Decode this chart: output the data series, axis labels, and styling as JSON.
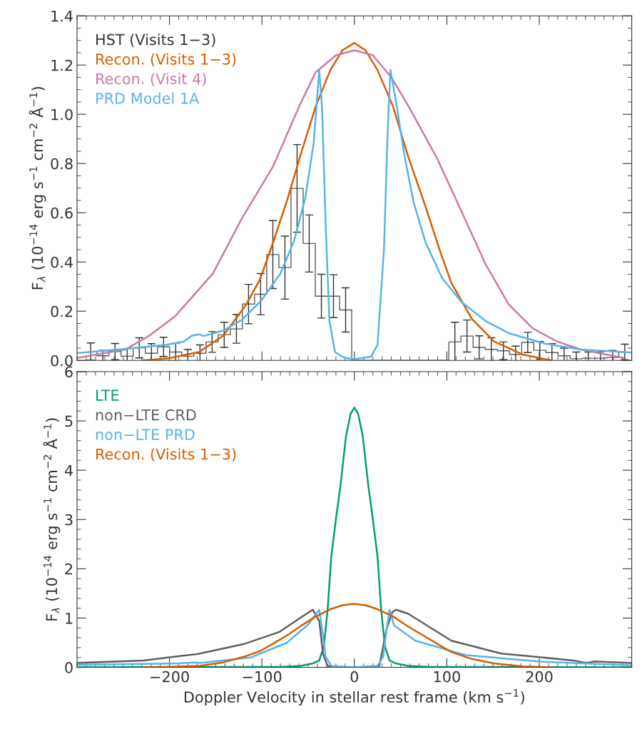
{
  "chart_data": [
    {
      "type": "line",
      "ylabel": "F$_{λ}$ (10$^{−14}$ erg s$^{−1}$ cm$^{−2}$ Å$^{−1}$)",
      "xlim": [
        -300,
        300
      ],
      "xticks": [
        -200,
        -100,
        0,
        100,
        200
      ],
      "ylim": [
        0,
        1.4
      ],
      "yticks": [
        {
          "value": 0,
          "label": "0.0"
        },
        0.2,
        0.4,
        0.6,
        0.8,
        {
          "value": 1,
          "label": "1.0"
        },
        1.2,
        1.4
      ],
      "tick_labels": "y",
      "legend": "top left",
      "grid": false,
      "series": [
        {
          "name": "HST (Visits 1−3)",
          "type": "step",
          "color": "#333333",
          "x": [
            -285.2,
            -272.1,
            -258.9,
            -245.8,
            -232.7,
            -219.5,
            -206.4,
            -193.3,
            -180.2,
            -167.0,
            -153.9,
            -140.8,
            -127.6,
            -114.5,
            -101.4,
            -88.2,
            -75.1,
            -62.0,
            -48.9,
            -35.7,
            -22.6,
            -9.5,
            3.7,
            16.8,
            29.9,
            43.1,
            56.2,
            69.3,
            82.4,
            95.6,
            108.7,
            121.8,
            135.0,
            148.1,
            161.2,
            174.4,
            187.5,
            200.6,
            213.7,
            226.9,
            240.0,
            253.1,
            266.3,
            279.4,
            292.5
          ],
          "values": [
            0.036,
            0.019,
            0.036,
            0.017,
            0.051,
            0.029,
            0.055,
            0.034,
            0.017,
            0.029,
            0.075,
            0.104,
            0.128,
            0.229,
            0.269,
            0.43,
            0.377,
            0.699,
            0.475,
            0.261,
            0.261,
            0.205,
            0,
            0,
            0,
            0,
            0,
            0,
            0,
            0,
            0.075,
            0.099,
            0.053,
            0.045,
            0.039,
            0.024,
            0.073,
            0.041,
            0.032,
            0.019,
            0.007,
            0.009,
            0.009,
            0.012,
            0.034
          ],
          "errors": [
            0.035,
            0.022,
            0.033,
            0.031,
            0.041,
            0.039,
            0.039,
            0.036,
            0.027,
            0.034,
            0.042,
            0.051,
            0.058,
            0.08,
            0.084,
            0.138,
            0.128,
            0.178,
            0.116,
            0.089,
            0.087,
            0.09,
            null,
            null,
            null,
            null,
            null,
            null,
            null,
            null,
            0.08,
            0.065,
            0.047,
            0.047,
            0.036,
            0.034,
            0.041,
            0.036,
            0.036,
            0.031,
            0.027,
            0.025,
            0.026,
            0.029,
            0.032
          ]
        },
        {
          "name": "Recon. (Visits 1−3)",
          "color": "#d55e00",
          "x": [
            -229,
            -202,
            -168,
            -142,
            -117,
            -102,
            -88,
            -72,
            -57,
            -42,
            -26,
            -13,
            0,
            12,
            25,
            42,
            58,
            77,
            93,
            105,
            127,
            151,
            182,
            213
          ],
          "values": [
            0,
            0.008,
            0.034,
            0.1,
            0.227,
            0.33,
            0.479,
            0.66,
            0.85,
            1.03,
            1.18,
            1.26,
            1.29,
            1.26,
            1.18,
            1.03,
            0.83,
            0.624,
            0.44,
            0.314,
            0.169,
            0.077,
            0.024,
            0
          ]
        },
        {
          "name": "Recon. (Visit 4)",
          "color": "#cc79a7",
          "x": [
            -300,
            -248,
            -222,
            -194,
            -153,
            -122,
            -88,
            -60,
            -42,
            -20,
            0,
            20,
            40,
            59,
            90,
            116,
            142,
            167,
            193,
            219,
            245,
            291
          ],
          "values": [
            0.01,
            0.044,
            0.1,
            0.179,
            0.353,
            0.575,
            0.788,
            1.03,
            1.17,
            1.24,
            1.26,
            1.24,
            1.15,
            1.03,
            0.817,
            0.604,
            0.39,
            0.227,
            0.13,
            0.077,
            0.044,
            0.01
          ]
        },
        {
          "name": "PRD Model 1A",
          "color": "#56b4e9",
          "x": [
            -300,
            -256,
            -204,
            -184,
            -176,
            -168,
            -163,
            -142,
            -122,
            -101,
            -80,
            -65,
            -53,
            -44,
            -38,
            -35,
            -31,
            -27,
            -21,
            -11,
            0,
            18,
            25,
            32,
            36,
            39,
            46,
            54,
            64,
            77,
            95,
            116,
            142,
            167,
            206,
            245,
            300
          ],
          "values": [
            0.03,
            0.044,
            0.063,
            0.077,
            0.1,
            0.106,
            0.099,
            0.121,
            0.164,
            0.242,
            0.353,
            0.488,
            0.662,
            0.885,
            1.18,
            1.03,
            0.546,
            0.16,
            0.034,
            0.01,
            0.005,
            0.015,
            0.063,
            0.45,
            0.93,
            1.18,
            1.03,
            0.836,
            0.643,
            0.479,
            0.334,
            0.237,
            0.16,
            0.111,
            0.068,
            0.044,
            0.032
          ]
        }
      ]
    },
    {
      "type": "line",
      "xlabel": "Doppler Velocity in stellar rest frame (km s$^{−1}$)",
      "ylabel": "F$_{λ}$ (10$^{−14}$ erg s$^{−1}$ cm$^{−2}$ Å$^{−1}$)",
      "xlim": [
        -300,
        300
      ],
      "xticks": [
        {
          "value": -200,
          "label": "−200"
        },
        {
          "value": -100,
          "label": "−100"
        },
        0,
        100,
        200
      ],
      "ylim": [
        0,
        6
      ],
      "yticks": [
        0,
        1,
        2,
        3,
        4,
        5,
        6
      ],
      "legend": "top left",
      "grid": false,
      "series": [
        {
          "name": "LTE",
          "color": "#009e73",
          "x": [
            -300,
            -150,
            -80,
            -58,
            -45,
            -38,
            -33,
            -29,
            -25,
            -20,
            -15,
            -9,
            -4,
            0,
            4,
            9,
            15,
            20,
            25,
            29,
            33,
            38,
            45,
            58,
            80,
            150,
            300
          ],
          "values": [
            0,
            0.01,
            0.01,
            0.03,
            0.08,
            0.14,
            0.43,
            1.16,
            2.25,
            3.0,
            3.7,
            4.7,
            5.15,
            5.27,
            5.15,
            4.7,
            3.7,
            3.0,
            2.25,
            1.16,
            0.43,
            0.14,
            0.08,
            0.03,
            0.01,
            0.01,
            0
          ]
        },
        {
          "name": "non−LTE CRD",
          "color": "#606060",
          "x": [
            -299,
            -228,
            -170,
            -120,
            -81,
            -58,
            -45,
            -38,
            -34,
            -29,
            -15,
            0,
            15,
            27,
            35,
            41,
            45,
            58,
            105,
            159,
            237,
            248,
            252,
            260,
            299
          ],
          "values": [
            0.09,
            0.14,
            0.27,
            0.47,
            0.72,
            1.01,
            1.17,
            0.94,
            0.28,
            0.03,
            0,
            0,
            0,
            0.03,
            0.79,
            1.12,
            1.17,
            1.09,
            0.54,
            0.28,
            0.14,
            0.1,
            0.09,
            0.12,
            0.09
          ]
        },
        {
          "name": "non−LTE PRD",
          "color": "#56b4e9",
          "x": [
            -299,
            -190,
            -174,
            -166,
            -112,
            -73,
            -50,
            -38,
            -35,
            -31,
            -25,
            0,
            25,
            31,
            35,
            38,
            43,
            66,
            120,
            198,
            299
          ],
          "values": [
            0.05,
            0.08,
            0.1,
            0.09,
            0.2,
            0.5,
            0.87,
            1.17,
            0.79,
            0.21,
            0.03,
            0,
            0.03,
            0.21,
            0.79,
            1.17,
            0.85,
            0.54,
            0.25,
            0.12,
            0.04
          ]
        },
        {
          "name": "Recon. (Visits 1−3)",
          "color": "#d55e00",
          "x": [
            -229,
            -202,
            -168,
            -142,
            -117,
            -102,
            -88,
            -72,
            -57,
            -42,
            -26,
            -13,
            0,
            12,
            25,
            42,
            58,
            77,
            93,
            105,
            127,
            151,
            182,
            213
          ],
          "values": [
            0,
            0.01,
            0.03,
            0.1,
            0.23,
            0.33,
            0.48,
            0.66,
            0.85,
            1.03,
            1.18,
            1.26,
            1.29,
            1.26,
            1.18,
            1.03,
            0.83,
            0.62,
            0.44,
            0.31,
            0.17,
            0.08,
            0.02,
            0
          ]
        }
      ]
    }
  ]
}
